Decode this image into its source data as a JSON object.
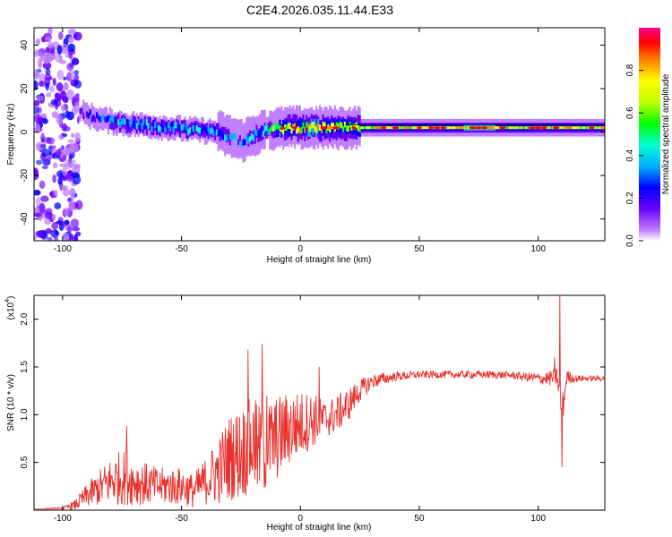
{
  "title": "C2E4.2026.035.11.44.E33",
  "chart_data": [
    {
      "type": "heatmap",
      "name": "spectrogram",
      "title": "C2E4.2026.035.11.44.E33",
      "xlabel": "Height of straight line (km)",
      "ylabel": "Frequency (Hz)",
      "xlim": [
        -112,
        128
      ],
      "ylim": [
        -50,
        48
      ],
      "xticks": [
        -100,
        -50,
        0,
        50,
        100
      ],
      "xtick_labels": [
        "-100",
        "-50",
        "0",
        "50",
        "100"
      ],
      "yticks": [
        -40,
        -20,
        0,
        20,
        40
      ],
      "ytick_labels": [
        "-40",
        "-20",
        "0",
        "20",
        "40"
      ],
      "colorbar": {
        "label": "Normalized spectral amplitude",
        "range": [
          0.0,
          1.0
        ],
        "ticks": [
          0.0,
          0.2,
          0.4,
          0.6,
          0.8
        ],
        "tick_labels": [
          "0.0",
          "0.2",
          "0.4",
          "0.6",
          "0.8"
        ],
        "colormap": [
          "#ffffff",
          "#c080ff",
          "#6a00ff",
          "#0000ff",
          "#00b0ff",
          "#00ffd0",
          "#00ff00",
          "#c0ff00",
          "#ffff00",
          "#ff8000",
          "#ff0000",
          "#ff0090"
        ]
      },
      "ridge": {
        "x": [
          -95,
          -85,
          -75,
          -65,
          -55,
          -45,
          -35,
          -25,
          -15,
          -5,
          5,
          15,
          25,
          50,
          75,
          100,
          128
        ],
        "frequency": [
          10,
          6,
          4,
          3,
          2,
          1,
          0,
          -4,
          1,
          2,
          2,
          2,
          2,
          2,
          2,
          2,
          2
        ],
        "amplitude": [
          0.15,
          0.25,
          0.3,
          0.3,
          0.3,
          0.3,
          0.3,
          0.25,
          0.35,
          0.6,
          0.65,
          0.6,
          0.55,
          0.6,
          0.65,
          0.6,
          0.6
        ]
      },
      "noise_region_x": [
        -112,
        -93
      ]
    },
    {
      "type": "line",
      "name": "snr",
      "xlabel": "Height of straight line (km)",
      "ylabel": "SNR (10 * v/v)",
      "y_multiplier": "(x10^4)",
      "y_multiplier_base": "(x10",
      "y_multiplier_exp": "4",
      "y_multiplier_close": ")",
      "xlim": [
        -112,
        128
      ],
      "ylim": [
        0,
        2.25
      ],
      "xticks": [
        -100,
        -50,
        0,
        50,
        100
      ],
      "xtick_labels": [
        "-100",
        "-50",
        "0",
        "50",
        "100"
      ],
      "yticks": [
        0.5,
        1.0,
        1.5,
        2.0
      ],
      "ytick_labels": [
        "0.5",
        "1.0",
        "1.5",
        "2.0"
      ],
      "color": "#e8302c",
      "envelope": {
        "x": [
          -112,
          -100,
          -95,
          -90,
          -80,
          -75,
          -70,
          -60,
          -50,
          -45,
          -40,
          -35,
          -30,
          -25,
          -20,
          -18,
          -15,
          -10,
          -5,
          0,
          5,
          10,
          15,
          20,
          25,
          30,
          40,
          50,
          60,
          70,
          80,
          90,
          100,
          105,
          108,
          110,
          112,
          115,
          120,
          128
        ],
        "y": [
          0.01,
          0.02,
          0.05,
          0.15,
          0.3,
          0.35,
          0.3,
          0.25,
          0.25,
          0.2,
          0.3,
          0.4,
          0.55,
          0.6,
          0.7,
          0.6,
          0.65,
          0.75,
          0.85,
          0.9,
          0.95,
          0.95,
          1.0,
          1.1,
          1.25,
          1.35,
          1.4,
          1.42,
          1.42,
          1.42,
          1.42,
          1.41,
          1.38,
          1.38,
          1.4,
          1.0,
          1.4,
          1.38,
          1.38,
          1.38
        ],
        "noise": [
          0.0,
          0.01,
          0.05,
          0.12,
          0.25,
          0.3,
          0.25,
          0.2,
          0.2,
          0.18,
          0.25,
          0.35,
          0.45,
          0.5,
          0.5,
          0.5,
          0.5,
          0.45,
          0.4,
          0.35,
          0.3,
          0.2,
          0.2,
          0.18,
          0.12,
          0.08,
          0.05,
          0.04,
          0.04,
          0.04,
          0.04,
          0.04,
          0.06,
          0.08,
          0.1,
          0.2,
          0.08,
          0.04,
          0.03,
          0.03
        ]
      },
      "spikes": [
        {
          "x": -73,
          "y": 0.88
        },
        {
          "x": -22,
          "y": 1.68
        },
        {
          "x": -16,
          "y": 1.74
        },
        {
          "x": -19,
          "y": 1.15
        },
        {
          "x": -14,
          "y": 1.2
        },
        {
          "x": 8,
          "y": 1.5
        },
        {
          "x": 109,
          "y": 2.3
        },
        {
          "x": 110,
          "y": 0.45
        },
        {
          "x": 107,
          "y": 1.6
        }
      ]
    }
  ]
}
